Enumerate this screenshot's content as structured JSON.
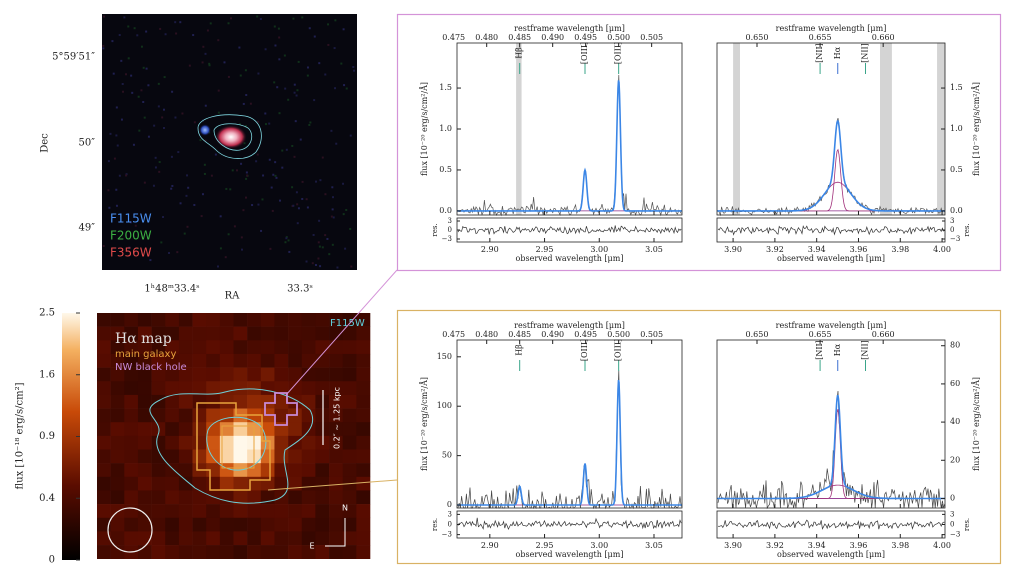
{
  "image": {
    "dec_labels": [
      "5°59′51″",
      "50″",
      "49″"
    ],
    "dec_title": "Dec",
    "ra_labels": [
      "1ʰ48ᵐ33.4ˢ",
      "33.3ˢ"
    ],
    "ra_title": "RA",
    "filters": [
      {
        "name": "F115W",
        "color": "#4a8ff0"
      },
      {
        "name": "F200W",
        "color": "#3cb043"
      },
      {
        "name": "F356W",
        "color": "#e04a4a"
      }
    ]
  },
  "map": {
    "title": "Hα map",
    "regions": [
      {
        "name": "main galaxy",
        "color": "#e8a33c"
      },
      {
        "name": "NW black hole",
        "color": "#c88ad8"
      }
    ],
    "filter": "F115W",
    "scale_label": "0.2″ ~ 1.25 kpc",
    "north": "N",
    "east": "E",
    "colorbar_title": "flux [10⁻¹⁸ erg/s/cm²]",
    "colorbar_ticks": [
      2.5,
      1.6,
      0.9,
      0.4,
      0
    ]
  },
  "spectra": [
    {
      "rest_title": "restframe wavelength [μm]",
      "rest_range": [
        0.4755,
        0.5096
      ],
      "rest_ticks": [
        0.475,
        {
          "value": 0.48,
          "label": "0.480"
        },
        0.485,
        {
          "value": 0.49,
          "label": "0.490"
        },
        0.495,
        {
          "value": 0.5,
          "label": "0.500"
        },
        0.505
      ],
      "obs_title": "observed wavelength [μm]",
      "obs_range": [
        2.87,
        3.0756
      ],
      "obs_ticks": [
        {
          "value": 2.9,
          "label": "2.90"
        },
        2.95,
        {
          "value": 3,
          "label": "3.00"
        },
        3.05
      ],
      "y_title": "flux [10⁻²⁰ erg/s/cm²/Å]",
      "ylim": [
        -0.05,
        2.05
      ],
      "yticks": [
        {
          "value": 0,
          "label": "0.0"
        },
        0.5,
        {
          "value": 1,
          "label": "1.0"
        },
        1.5
      ],
      "res_title": "res.",
      "res_ylim": [
        -4,
        4
      ],
      "res_ticks": [
        3,
        0,
        {
          "value": -3,
          "label": "−3"
        }
      ],
      "masked": [
        [
          2.924,
          2.929
        ]
      ],
      "lines": [
        {
          "label": "Hβ",
          "rest": 0.485,
          "peak": 0
        },
        {
          "label": "[OIII]",
          "rest": 0.4949,
          "peak": 0.5
        },
        {
          "label": "[OIII]",
          "rest": 0.5,
          "peak": 1.6
        }
      ]
    },
    {
      "rest_title": "restframe wavelength [μm]",
      "rest_range": [
        0.64683,
        0.6649
      ],
      "rest_ticks": [
        {
          "value": 0.65,
          "label": "0.650"
        },
        0.655,
        {
          "value": 0.66,
          "label": "0.660"
        }
      ],
      "obs_title": "observed wavelength [μm]",
      "obs_range": [
        3.8923,
        4.0014
      ],
      "obs_ticks": [
        {
          "value": 3.9,
          "label": "3.90"
        },
        3.92,
        3.94,
        3.96,
        3.98,
        {
          "value": 4,
          "label": "4.00"
        }
      ],
      "y_title": "flux [10⁻²⁰ erg/s/cm²/Å]",
      "ylim": [
        -0.05,
        2.05
      ],
      "yticks": [
        {
          "value": 0,
          "label": "0.0"
        },
        0.5,
        {
          "value": 1,
          "label": "1.0"
        },
        1.5
      ],
      "res_title": "res.",
      "res_ylim": [
        -4,
        4
      ],
      "res_ticks": [
        3,
        0,
        {
          "value": -3,
          "label": "−3"
        }
      ],
      "masked": [
        [
          3.9,
          3.9033
        ],
        [
          3.9703,
          3.976
        ],
        [
          3.9976,
          4.0014
        ]
      ],
      "lines": [
        {
          "label": "[NII]",
          "rest": 0.655,
          "peak": 0
        },
        {
          "label": "Hα",
          "rest": 0.6564,
          "peak": 0.75
        },
        {
          "label": "[NII]",
          "rest": 0.6586,
          "peak": 0
        }
      ],
      "broad_peak": 0.35
    },
    {
      "rest_title": "restframe wavelength [μm]",
      "rest_range": [
        0.4755,
        0.5096
      ],
      "rest_ticks": [
        0.475,
        {
          "value": 0.48,
          "label": "0.480"
        },
        0.485,
        {
          "value": 0.49,
          "label": "0.490"
        },
        0.495,
        {
          "value": 0.5,
          "label": "0.500"
        },
        0.505
      ],
      "obs_title": "observed wavelength [μm]",
      "obs_range": [
        2.87,
        3.0756
      ],
      "obs_ticks": [
        {
          "value": 2.9,
          "label": "2.90"
        },
        2.95,
        {
          "value": 3,
          "label": "3.00"
        },
        3.05
      ],
      "y_title": "flux [10⁻²⁰ erg/s/cm²/Å]",
      "ylim": [
        -3,
        167
      ],
      "yticks": [
        0,
        50,
        100,
        150
      ],
      "res_title": "res.",
      "res_ylim": [
        -4,
        4
      ],
      "res_ticks": [
        3,
        0,
        {
          "value": -3,
          "label": "−3"
        }
      ],
      "lines": [
        {
          "label": "Hβ",
          "rest": 0.485,
          "peak": 19
        },
        {
          "label": "[OIII]",
          "rest": 0.4949,
          "peak": 42
        },
        {
          "label": "[OIII]",
          "rest": 0.5,
          "peak": 127
        }
      ]
    },
    {
      "rest_title": "restframe wavelength [μm]",
      "rest_range": [
        0.64683,
        0.6649
      ],
      "rest_ticks": [
        {
          "value": 0.65,
          "label": "0.650"
        },
        0.655,
        {
          "value": 0.66,
          "label": "0.660"
        }
      ],
      "obs_title": "observed wavelength [μm]",
      "obs_range": [
        3.8923,
        4.0014
      ],
      "obs_ticks": [
        {
          "value": 3.9,
          "label": "3.90"
        },
        3.92,
        3.94,
        3.96,
        3.98,
        {
          "value": 4,
          "label": "4.00"
        }
      ],
      "y_title": "flux [10⁻²⁰ erg/s/cm²/Å]",
      "ylim": [
        -5,
        83
      ],
      "yticks": [
        0,
        20,
        40,
        60,
        80
      ],
      "res_title": "res.",
      "res_ylim": [
        -4,
        4
      ],
      "res_ticks": [
        3,
        0,
        {
          "value": -3,
          "label": "−3"
        }
      ],
      "lines": [
        {
          "label": "[NII]",
          "rest": 0.655,
          "peak": 0
        },
        {
          "label": "Hα",
          "rest": 0.6564,
          "peak": 47
        },
        {
          "label": "[NII]",
          "rest": 0.6586,
          "peak": 0
        }
      ],
      "broad_peak": 7
    }
  ]
}
